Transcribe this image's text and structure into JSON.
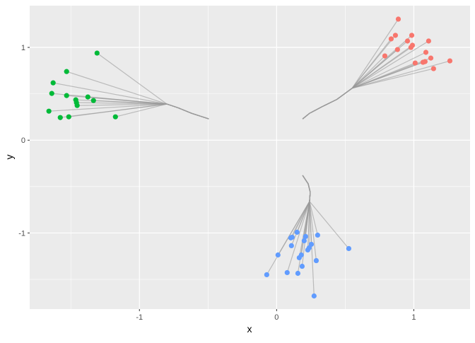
{
  "chart_data": {
    "type": "scatter",
    "xlabel": "x",
    "ylabel": "y",
    "xlim": [
      -1.8,
      1.41
    ],
    "ylim": [
      -1.82,
      1.45
    ],
    "x_ticks": [
      -1,
      0,
      1
    ],
    "x_tick_labels": [
      "-1",
      "0",
      "1"
    ],
    "y_ticks": [
      -1,
      0,
      1
    ],
    "y_tick_labels": [
      "-1",
      "0",
      "1"
    ],
    "x_minor": [
      -1.5,
      -0.5,
      0.5
    ],
    "y_minor": [
      -1.5,
      -0.5,
      0.5
    ],
    "grid": true,
    "background": "#EBEBEB",
    "line_color": "#999999",
    "groups": [
      {
        "color": "#F8766D",
        "trunk": [
          [
            0.19,
            0.23
          ],
          [
            0.24,
            0.29
          ],
          [
            0.33,
            0.36
          ],
          [
            0.44,
            0.44
          ],
          [
            0.55,
            0.56
          ]
        ],
        "points": [
          [
            0.887,
            1.305
          ],
          [
            0.835,
            1.092
          ],
          [
            0.866,
            1.13
          ],
          [
            0.954,
            1.069
          ],
          [
            0.985,
            1.13
          ],
          [
            0.99,
            1.023
          ],
          [
            0.979,
            1.0
          ],
          [
            0.881,
            0.977
          ],
          [
            1.108,
            1.069
          ],
          [
            0.789,
            0.908
          ],
          [
            1.088,
            0.947
          ],
          [
            1.01,
            0.832
          ],
          [
            1.067,
            0.84
          ],
          [
            1.082,
            0.847
          ],
          [
            1.124,
            0.885
          ],
          [
            1.144,
            0.771
          ],
          [
            1.263,
            0.855
          ]
        ]
      },
      {
        "color": "#00BA38",
        "trunk": [
          [
            -0.495,
            0.23
          ],
          [
            -0.62,
            0.29
          ],
          [
            -0.72,
            0.35
          ],
          [
            -0.8,
            0.39
          ]
        ],
        "points": [
          [
            -1.309,
            0.939
          ],
          [
            -1.531,
            0.74
          ],
          [
            -1.629,
            0.618
          ],
          [
            -1.639,
            0.504
          ],
          [
            -1.531,
            0.481
          ],
          [
            -1.376,
            0.466
          ],
          [
            -1.464,
            0.435
          ],
          [
            -1.459,
            0.405
          ],
          [
            -1.335,
            0.427
          ],
          [
            -1.454,
            0.374
          ],
          [
            -1.66,
            0.313
          ],
          [
            -1.577,
            0.244
          ],
          [
            -1.515,
            0.252
          ],
          [
            -1.175,
            0.252
          ]
        ]
      },
      {
        "color": "#619CFF",
        "trunk": [
          [
            0.19,
            -0.38
          ],
          [
            0.23,
            -0.47
          ],
          [
            0.245,
            -0.56
          ],
          [
            0.24,
            -0.66
          ]
        ],
        "points": [
          [
            0.526,
            -1.168
          ],
          [
            0.299,
            -1.023
          ],
          [
            0.149,
            -0.992
          ],
          [
            0.113,
            -1.046
          ],
          [
            0.103,
            -1.053
          ],
          [
            0.108,
            -1.137
          ],
          [
            0.211,
            -1.038
          ],
          [
            0.201,
            -1.084
          ],
          [
            0.253,
            -1.122
          ],
          [
            0.237,
            -1.16
          ],
          [
            0.227,
            -1.183
          ],
          [
            0.18,
            -1.237
          ],
          [
            0.165,
            -1.267
          ],
          [
            0.01,
            -1.237
          ],
          [
            -0.072,
            -1.45
          ],
          [
            0.077,
            -1.427
          ],
          [
            0.155,
            -1.435
          ],
          [
            0.186,
            -1.359
          ],
          [
            0.289,
            -1.298
          ],
          [
            0.273,
            -1.679
          ]
        ]
      }
    ]
  }
}
